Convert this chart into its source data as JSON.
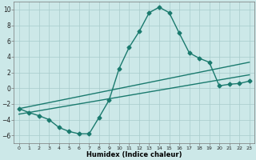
{
  "line1_x": [
    0,
    1,
    2,
    3,
    4,
    5,
    6,
    7,
    8,
    9,
    10,
    11,
    12,
    13,
    14,
    15,
    16,
    17,
    18,
    19,
    20,
    21,
    22,
    23
  ],
  "line1_y": [
    -2.6,
    -3.1,
    -3.5,
    -4.0,
    -5.0,
    -5.5,
    -5.8,
    -5.8,
    -3.7,
    -1.5,
    2.5,
    5.2,
    7.2,
    9.6,
    10.3,
    9.6,
    7.0,
    4.5,
    3.8,
    3.3,
    0.3,
    0.5,
    0.6,
    0.9
  ],
  "line2_x": [
    0,
    23
  ],
  "line2_y": [
    -2.6,
    3.3
  ],
  "line3_x": [
    0,
    23
  ],
  "line3_y": [
    -3.3,
    1.7
  ],
  "xlabel": "Humidex (Indice chaleur)",
  "yticks": [
    -6,
    -4,
    -2,
    0,
    2,
    4,
    6,
    8,
    10
  ],
  "xticks": [
    0,
    1,
    2,
    3,
    4,
    5,
    6,
    7,
    8,
    9,
    10,
    11,
    12,
    13,
    14,
    15,
    16,
    17,
    18,
    19,
    20,
    21,
    22,
    23
  ],
  "xlim": [
    -0.5,
    23.5
  ],
  "ylim": [
    -7,
    11
  ],
  "line_color": "#1a7a6e",
  "bg_color": "#cce8e8",
  "grid_color": "#a8cccc",
  "marker": "D",
  "markersize": 2.5,
  "linewidth": 1.0
}
